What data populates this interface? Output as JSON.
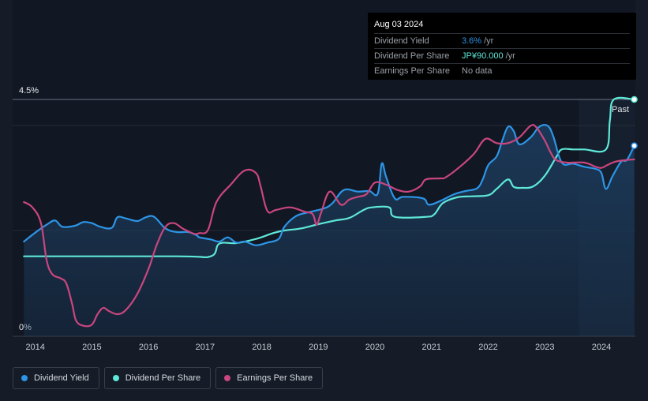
{
  "colors": {
    "background": "#151b27",
    "plot_bg": "#111723",
    "dividend_yield": "#2d95e6",
    "dividend_per_share": "#5ee8d8",
    "earnings_per_share": "#c9467f",
    "area_fill": "#1c3a5a",
    "forecast_shade": "#1b2a3b"
  },
  "tooltip": {
    "date": "Aug 03 2024",
    "rows": [
      {
        "label": "Dividend Yield",
        "value": "3.6%",
        "unit": "/yr",
        "color": "#2d95e6"
      },
      {
        "label": "Dividend Per Share",
        "value": "JP¥90.000",
        "unit": "/yr",
        "color": "#5ee8d8"
      },
      {
        "label": "Earnings Per Share",
        "value": "No data",
        "unit": "",
        "color": "#9aa0a8"
      }
    ]
  },
  "legend": [
    {
      "label": "Dividend Yield",
      "color": "#2d95e6",
      "icon": "circle-icon"
    },
    {
      "label": "Dividend Per Share",
      "color": "#5ee8d8",
      "icon": "circle-icon"
    },
    {
      "label": "Earnings Per Share",
      "color": "#c9467f",
      "icon": "circle-icon"
    }
  ],
  "chart_data": {
    "type": "line",
    "title": "",
    "xlabel": "",
    "ylabel": "",
    "x_ticks": [
      "2014",
      "2015",
      "2016",
      "2017",
      "2018",
      "2019",
      "2020",
      "2021",
      "2022",
      "2023",
      "2024"
    ],
    "x_range": [
      2013.6,
      2024.6
    ],
    "ylim": [
      0,
      4.5
    ],
    "y_tick_labels": [
      "0%",
      "4.5%"
    ],
    "past_label": "Past",
    "past_start": 2023.6,
    "series": [
      {
        "name": "Dividend Yield",
        "unit": "%",
        "points": [
          [
            2013.8,
            1.8
          ],
          [
            2014.0,
            1.97
          ],
          [
            2014.2,
            2.12
          ],
          [
            2014.35,
            2.2
          ],
          [
            2014.48,
            2.08
          ],
          [
            2014.7,
            2.1
          ],
          [
            2014.85,
            2.17
          ],
          [
            2015.0,
            2.15
          ],
          [
            2015.15,
            2.08
          ],
          [
            2015.35,
            2.06
          ],
          [
            2015.45,
            2.26
          ],
          [
            2015.6,
            2.24
          ],
          [
            2015.8,
            2.19
          ],
          [
            2015.95,
            2.26
          ],
          [
            2016.1,
            2.27
          ],
          [
            2016.3,
            2.05
          ],
          [
            2016.5,
            1.98
          ],
          [
            2016.7,
            1.98
          ],
          [
            2016.85,
            1.92
          ],
          [
            2016.9,
            1.88
          ],
          [
            2017.1,
            1.84
          ],
          [
            2017.25,
            1.8
          ],
          [
            2017.4,
            1.88
          ],
          [
            2017.55,
            1.78
          ],
          [
            2017.7,
            1.8
          ],
          [
            2017.9,
            1.73
          ],
          [
            2018.1,
            1.78
          ],
          [
            2018.3,
            1.85
          ],
          [
            2018.4,
            2.08
          ],
          [
            2018.6,
            2.28
          ],
          [
            2018.8,
            2.35
          ],
          [
            2019.1,
            2.43
          ],
          [
            2019.25,
            2.53
          ],
          [
            2019.45,
            2.78
          ],
          [
            2019.7,
            2.75
          ],
          [
            2019.9,
            2.76
          ],
          [
            2020.05,
            2.71
          ],
          [
            2020.12,
            3.28
          ],
          [
            2020.2,
            3.02
          ],
          [
            2020.35,
            2.62
          ],
          [
            2020.5,
            2.65
          ],
          [
            2020.85,
            2.62
          ],
          [
            2020.95,
            2.5
          ],
          [
            2021.15,
            2.57
          ],
          [
            2021.4,
            2.7
          ],
          [
            2021.6,
            2.76
          ],
          [
            2021.8,
            2.81
          ],
          [
            2021.9,
            2.97
          ],
          [
            2022.0,
            3.25
          ],
          [
            2022.15,
            3.42
          ],
          [
            2022.25,
            3.72
          ],
          [
            2022.35,
            3.98
          ],
          [
            2022.45,
            3.9
          ],
          [
            2022.55,
            3.65
          ],
          [
            2022.75,
            3.78
          ],
          [
            2022.9,
            3.98
          ],
          [
            2023.05,
            4.0
          ],
          [
            2023.15,
            3.8
          ],
          [
            2023.3,
            3.3
          ],
          [
            2023.5,
            3.28
          ],
          [
            2023.7,
            3.22
          ],
          [
            2023.9,
            3.18
          ],
          [
            2024.0,
            3.1
          ],
          [
            2024.08,
            2.8
          ],
          [
            2024.2,
            3.05
          ],
          [
            2024.35,
            3.32
          ],
          [
            2024.45,
            3.35
          ],
          [
            2024.58,
            3.62
          ]
        ]
      },
      {
        "name": "Dividend Per Share",
        "unit": "JP¥",
        "points": [
          [
            2013.8,
            1.52
          ],
          [
            2016.5,
            1.52
          ],
          [
            2017.1,
            1.52
          ],
          [
            2017.25,
            1.76
          ],
          [
            2017.55,
            1.77
          ],
          [
            2017.9,
            1.85
          ],
          [
            2018.2,
            1.96
          ],
          [
            2018.4,
            2.01
          ],
          [
            2018.7,
            2.05
          ],
          [
            2019.0,
            2.13
          ],
          [
            2019.3,
            2.2
          ],
          [
            2019.55,
            2.25
          ],
          [
            2019.8,
            2.4
          ],
          [
            2019.95,
            2.45
          ],
          [
            2020.25,
            2.45
          ],
          [
            2020.35,
            2.27
          ],
          [
            2020.9,
            2.27
          ],
          [
            2021.05,
            2.32
          ],
          [
            2021.2,
            2.53
          ],
          [
            2021.45,
            2.64
          ],
          [
            2021.7,
            2.66
          ],
          [
            2022.0,
            2.68
          ],
          [
            2022.15,
            2.8
          ],
          [
            2022.35,
            2.98
          ],
          [
            2022.45,
            2.84
          ],
          [
            2022.6,
            2.82
          ],
          [
            2022.8,
            2.85
          ],
          [
            2023.0,
            3.05
          ],
          [
            2023.2,
            3.4
          ],
          [
            2023.3,
            3.55
          ],
          [
            2023.5,
            3.55
          ],
          [
            2023.7,
            3.55
          ],
          [
            2024.08,
            3.55
          ],
          [
            2024.15,
            4.1
          ],
          [
            2024.22,
            4.5
          ],
          [
            2024.58,
            4.5
          ]
        ]
      },
      {
        "name": "Earnings Per Share",
        "unit": "JP¥",
        "points": [
          [
            2013.8,
            2.55
          ],
          [
            2013.95,
            2.45
          ],
          [
            2014.1,
            2.15
          ],
          [
            2014.2,
            1.45
          ],
          [
            2014.3,
            1.18
          ],
          [
            2014.45,
            1.1
          ],
          [
            2014.55,
            1.0
          ],
          [
            2014.65,
            0.62
          ],
          [
            2014.72,
            0.3
          ],
          [
            2014.85,
            0.2
          ],
          [
            2015.0,
            0.22
          ],
          [
            2015.1,
            0.42
          ],
          [
            2015.2,
            0.54
          ],
          [
            2015.3,
            0.48
          ],
          [
            2015.45,
            0.42
          ],
          [
            2015.6,
            0.5
          ],
          [
            2015.8,
            0.8
          ],
          [
            2016.0,
            1.28
          ],
          [
            2016.15,
            1.75
          ],
          [
            2016.3,
            2.08
          ],
          [
            2016.45,
            2.15
          ],
          [
            2016.6,
            2.05
          ],
          [
            2016.8,
            1.95
          ],
          [
            2016.9,
            1.96
          ],
          [
            2017.05,
            2.02
          ],
          [
            2017.2,
            2.55
          ],
          [
            2017.45,
            2.88
          ],
          [
            2017.7,
            3.15
          ],
          [
            2017.9,
            3.1
          ],
          [
            2017.98,
            2.85
          ],
          [
            2018.1,
            2.38
          ],
          [
            2018.25,
            2.4
          ],
          [
            2018.5,
            2.45
          ],
          [
            2018.75,
            2.37
          ],
          [
            2018.9,
            2.32
          ],
          [
            2018.97,
            2.12
          ],
          [
            2019.05,
            2.35
          ],
          [
            2019.2,
            2.75
          ],
          [
            2019.4,
            2.5
          ],
          [
            2019.55,
            2.6
          ],
          [
            2019.7,
            2.65
          ],
          [
            2019.85,
            2.7
          ],
          [
            2020.0,
            2.92
          ],
          [
            2020.2,
            2.88
          ],
          [
            2020.4,
            2.78
          ],
          [
            2020.6,
            2.75
          ],
          [
            2020.8,
            2.85
          ],
          [
            2020.9,
            2.98
          ],
          [
            2021.15,
            3.0
          ],
          [
            2021.25,
            3.02
          ],
          [
            2021.5,
            3.22
          ],
          [
            2021.75,
            3.47
          ],
          [
            2021.95,
            3.75
          ],
          [
            2022.15,
            3.67
          ],
          [
            2022.35,
            3.67
          ],
          [
            2022.55,
            3.78
          ],
          [
            2022.75,
            4.0
          ],
          [
            2022.85,
            3.97
          ],
          [
            2023.0,
            3.72
          ],
          [
            2023.1,
            3.5
          ],
          [
            2023.2,
            3.35
          ],
          [
            2023.4,
            3.3
          ],
          [
            2023.7,
            3.3
          ],
          [
            2023.9,
            3.22
          ],
          [
            2024.0,
            3.2
          ],
          [
            2024.1,
            3.25
          ],
          [
            2024.25,
            3.32
          ],
          [
            2024.45,
            3.35
          ],
          [
            2024.58,
            3.36
          ]
        ]
      }
    ]
  }
}
